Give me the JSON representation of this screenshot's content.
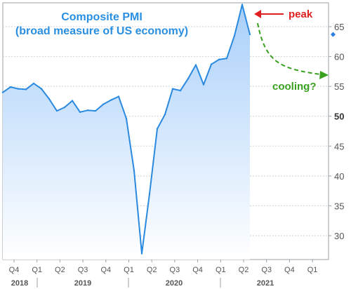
{
  "chart_data": {
    "type": "area",
    "title": [
      "Composite PMI",
      "(broad measure of US economy)"
    ],
    "ylim": [
      26,
      69
    ],
    "yticks": [
      30,
      35,
      40,
      45,
      50,
      55,
      60,
      65
    ],
    "quarter_ticks": [
      "Q4",
      "Q1",
      "Q2",
      "Q3",
      "Q4",
      "Q1",
      "Q2",
      "Q3",
      "Q4",
      "Q1",
      "Q2",
      "Q3",
      "Q4",
      "Q1"
    ],
    "years": [
      "2018",
      "2019",
      "2020",
      "2021"
    ],
    "x": [
      "2018-10",
      "2018-11",
      "2018-12",
      "2019-01",
      "2019-02",
      "2019-03",
      "2019-04",
      "2019-05",
      "2019-06",
      "2019-07",
      "2019-08",
      "2019-09",
      "2019-10",
      "2019-11",
      "2019-12",
      "2020-01",
      "2020-02",
      "2020-03",
      "2020-04",
      "2020-05",
      "2020-06",
      "2020-07",
      "2020-08",
      "2020-09",
      "2020-10",
      "2020-11",
      "2020-12",
      "2021-01",
      "2021-02",
      "2021-03",
      "2021-04",
      "2021-05",
      "2021-06"
    ],
    "series": [
      {
        "values": [
          54.0,
          54.9,
          54.6,
          54.5,
          55.5,
          54.6,
          52.9,
          50.9,
          51.5,
          52.6,
          50.7,
          51.0,
          50.9,
          52.0,
          52.7,
          53.3,
          49.6,
          40.9,
          27.0,
          37.0,
          47.9,
          50.3,
          54.6,
          54.3,
          56.3,
          58.6,
          55.3,
          58.7,
          59.5,
          59.7,
          63.5,
          68.7,
          63.7
        ]
      }
    ],
    "last_value_marker": 63.7,
    "annotations": {
      "peak_label": "peak",
      "cooling_label": "cooling?"
    },
    "colors": {
      "line": "#2a8ae0",
      "area_top": "#a9cffa",
      "area_bottom": "#ffffff",
      "title": "#2a8fe0",
      "peak": "#e02020",
      "cooling": "#3aa020",
      "marker": "#2a7fe0"
    }
  }
}
